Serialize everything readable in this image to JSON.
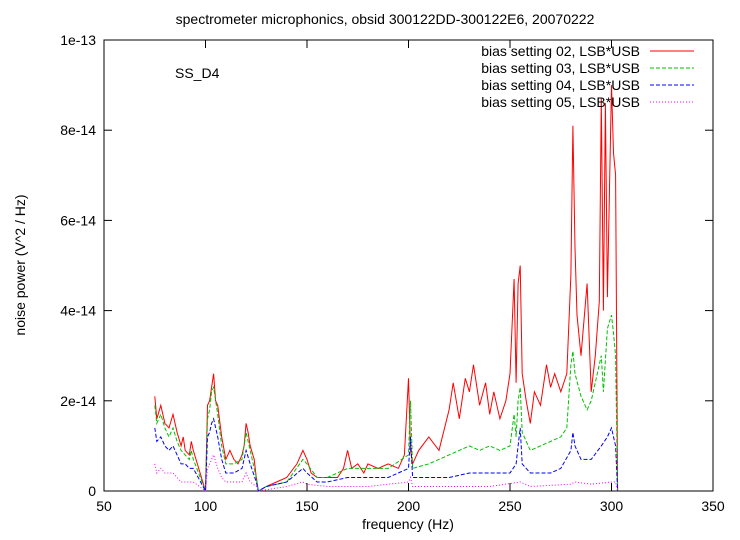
{
  "chart_data": {
    "type": "line",
    "title": "spectrometer microphonics, obsid 300122DD-300122E6, 20070222",
    "xlabel": "frequency (Hz)",
    "ylabel": "noise power (V^2 / Hz)",
    "annotation": "SS_D4",
    "xlim": [
      50,
      350
    ],
    "ylim": [
      0,
      1e-13
    ],
    "xticks": [
      50,
      100,
      150,
      200,
      250,
      300,
      350
    ],
    "xtick_labels": [
      "50",
      "100",
      "150",
      "200",
      "250",
      "300",
      "350"
    ],
    "yticks": [
      0,
      2e-14,
      4e-14,
      6e-14,
      8e-14,
      1e-13
    ],
    "ytick_labels": [
      "0",
      "2e-14",
      "4e-14",
      "6e-14",
      "8e-14",
      "1e-13"
    ],
    "grid": false,
    "legend_position": "top-right",
    "series": [
      {
        "name": "bias setting 02, LSB*USB",
        "color": "#ff0000",
        "dash": "solid",
        "x": [
          75,
          76,
          78,
          80,
          82,
          84,
          86,
          88,
          89,
          90,
          92,
          93,
          94,
          100,
          101,
          102,
          103,
          104,
          105,
          106,
          108,
          110,
          112,
          114,
          116,
          118,
          119,
          120,
          121,
          122,
          124,
          125,
          126,
          130,
          135,
          140,
          145,
          148,
          150,
          152,
          155,
          160,
          165,
          168,
          170,
          172,
          175,
          178,
          180,
          185,
          190,
          195,
          198,
          200,
          201,
          202,
          205,
          210,
          215,
          220,
          222,
          225,
          228,
          230,
          232,
          235,
          238,
          240,
          242,
          245,
          248,
          250,
          252,
          253,
          254,
          255,
          256,
          258,
          260,
          262,
          265,
          268,
          270,
          272,
          275,
          278,
          280,
          281,
          282,
          283,
          285,
          288,
          290,
          292,
          294,
          295,
          296,
          297,
          298,
          300,
          301,
          302,
          303
        ],
        "y": [
          2.1e-14,
          1.6e-14,
          1.9e-14,
          1.5e-14,
          1.4e-14,
          1.7e-14,
          1.3e-14,
          1e-14,
          1.2e-14,
          9e-15,
          8e-15,
          1.1e-14,
          9e-15,
          0.0,
          1.9e-14,
          2e-14,
          2.3e-14,
          2.6e-14,
          2e-14,
          1.9e-14,
          1.2e-14,
          7e-15,
          9e-15,
          7e-15,
          6e-15,
          8e-15,
          1e-14,
          1.5e-14,
          1.3e-14,
          1e-14,
          7e-15,
          3e-15,
          0.0,
          1e-15,
          2e-15,
          3e-15,
          6e-15,
          9e-15,
          7e-15,
          4e-15,
          3e-15,
          3e-15,
          3e-15,
          5e-15,
          9e-15,
          5e-15,
          6e-15,
          4e-15,
          6e-15,
          5e-15,
          6e-15,
          5e-15,
          8e-15,
          2.5e-14,
          9e-15,
          6e-15,
          9e-15,
          1.2e-14,
          9e-15,
          1.8e-14,
          2.4e-14,
          1.6e-14,
          2.5e-14,
          2.2e-14,
          2.8e-14,
          1.9e-14,
          2.4e-14,
          1.7e-14,
          2.2e-14,
          1.6e-14,
          2e-14,
          2.6e-14,
          4.7e-14,
          2.4e-14,
          4.6e-14,
          5e-14,
          2.6e-14,
          2e-14,
          1.5e-14,
          2.2e-14,
          1.9e-14,
          2.8e-14,
          2.3e-14,
          2.6e-14,
          2.2e-14,
          2.6e-14,
          4.8e-14,
          8.1e-14,
          5.4e-14,
          3.9e-14,
          3e-14,
          4.6e-14,
          2.2e-14,
          3e-14,
          4.2e-14,
          8.7e-14,
          4e-14,
          8.6e-14,
          4.3e-14,
          9e-14,
          7.5e-14,
          7e-14,
          0.0
        ]
      },
      {
        "name": "bias setting 03, LSB*USB",
        "color": "#00c000",
        "dash": "dashed",
        "x": [
          75,
          76,
          78,
          80,
          82,
          84,
          86,
          88,
          90,
          92,
          93,
          94,
          100,
          101,
          102,
          103,
          104,
          106,
          108,
          110,
          114,
          118,
          120,
          122,
          125,
          126,
          130,
          140,
          148,
          150,
          155,
          160,
          170,
          180,
          190,
          200,
          201,
          202,
          210,
          220,
          225,
          230,
          235,
          240,
          245,
          250,
          252,
          253,
          254,
          255,
          256,
          260,
          265,
          270,
          275,
          278,
          280,
          281,
          282,
          285,
          288,
          290,
          295,
          296,
          298,
          300,
          301,
          302,
          303
        ],
        "y": [
          1.9e-14,
          1.5e-14,
          1.7e-14,
          1.4e-14,
          1.2e-14,
          1.4e-14,
          1.1e-14,
          9e-15,
          8e-15,
          7e-15,
          9e-15,
          7e-15,
          0.0,
          1.6e-14,
          1.8e-14,
          2.2e-14,
          2.3e-14,
          1.7e-14,
          1e-14,
          6e-15,
          6e-15,
          7e-15,
          1.3e-14,
          9e-15,
          3e-15,
          0.0,
          1e-15,
          2e-15,
          7e-15,
          6e-15,
          3e-15,
          3e-15,
          5e-15,
          5e-15,
          5e-15,
          8e-15,
          2e-14,
          5e-15,
          6e-15,
          8e-15,
          9e-15,
          1e-14,
          9e-15,
          1e-14,
          9e-15,
          1e-14,
          1.7e-14,
          1.2e-14,
          2e-14,
          2.3e-14,
          1.3e-14,
          9e-15,
          1e-14,
          1.1e-14,
          1.2e-14,
          1.4e-14,
          2.8e-14,
          3.1e-14,
          2.6e-14,
          2.1e-14,
          1.8e-14,
          2e-14,
          3e-14,
          2.2e-14,
          3.6e-14,
          3.9e-14,
          3.5e-14,
          3e-14,
          0.0
        ]
      },
      {
        "name": "bias setting 04, LSB*USB",
        "color": "#0000ff",
        "dash": "dashed",
        "x": [
          75,
          76,
          78,
          80,
          82,
          84,
          86,
          88,
          90,
          92,
          94,
          100,
          101,
          102,
          103,
          104,
          106,
          108,
          110,
          114,
          118,
          120,
          122,
          125,
          126,
          130,
          140,
          148,
          150,
          155,
          160,
          170,
          180,
          190,
          200,
          201,
          202,
          210,
          220,
          230,
          240,
          250,
          253,
          254,
          255,
          256,
          260,
          270,
          275,
          280,
          281,
          282,
          285,
          290,
          295,
          298,
          300,
          301,
          302,
          303
        ],
        "y": [
          1.4e-14,
          1.1e-14,
          1.2e-14,
          1e-14,
          9e-15,
          1e-14,
          8e-15,
          6e-15,
          6e-15,
          5e-15,
          5e-15,
          0.0,
          1.2e-14,
          1.3e-14,
          1.5e-14,
          1.6e-14,
          1.2e-14,
          7e-15,
          4e-15,
          4e-15,
          5e-15,
          9e-15,
          6e-15,
          2e-15,
          0.0,
          1e-15,
          2e-15,
          5e-15,
          4e-15,
          2e-15,
          2e-15,
          3e-15,
          3e-15,
          3e-15,
          5e-15,
          1.2e-14,
          3e-15,
          3e-15,
          3e-15,
          4e-15,
          4e-15,
          4e-15,
          6e-15,
          1e-14,
          1.4e-14,
          6e-15,
          4e-15,
          4e-15,
          5e-15,
          9e-15,
          1.3e-14,
          1e-14,
          7e-15,
          7e-15,
          1e-14,
          1.2e-14,
          1.4e-14,
          1.2e-14,
          1e-14,
          0.0
        ]
      },
      {
        "name": "bias setting 05, LSB*USB",
        "color": "#ff00ff",
        "dash": "dotted",
        "x": [
          75,
          76,
          78,
          80,
          84,
          88,
          90,
          94,
          100,
          101,
          102,
          103,
          104,
          106,
          108,
          110,
          118,
          120,
          122,
          125,
          126,
          140,
          148,
          150,
          160,
          180,
          200,
          201,
          202,
          220,
          240,
          255,
          260,
          280,
          282,
          290,
          300,
          302,
          303
        ],
        "y": [
          6e-15,
          4e-15,
          5e-15,
          4e-15,
          4e-15,
          2e-15,
          2e-15,
          2e-15,
          0.0,
          5e-15,
          6e-15,
          7e-15,
          8e-15,
          5e-15,
          3e-15,
          2e-15,
          2e-15,
          4e-15,
          2e-15,
          1e-15,
          0.0,
          1e-15,
          2e-15,
          1.5e-15,
          1e-15,
          1e-15,
          2e-15,
          3e-15,
          1e-15,
          1e-15,
          1e-15,
          2e-15,
          1e-15,
          1.5e-15,
          2e-15,
          1.5e-15,
          2e-15,
          2e-15,
          0.0
        ]
      }
    ]
  }
}
